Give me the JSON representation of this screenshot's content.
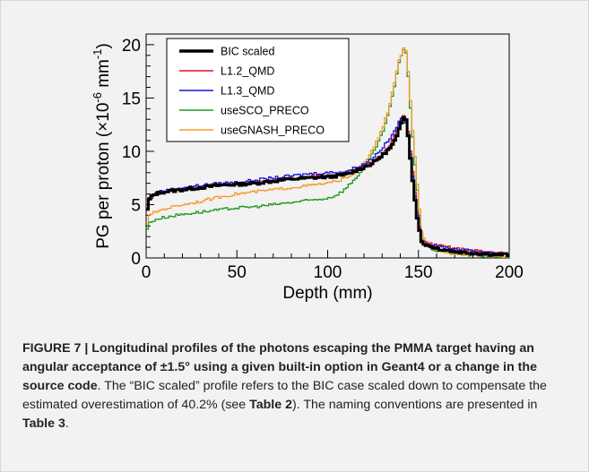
{
  "figure": {
    "label": "FIGURE 7 |",
    "title_bold": "Longitudinal profiles of the photons escaping the PMMA target having an angular acceptance of ±1.5° using a given built-in option in Geant4 or a change in the source code",
    "text_1": ". The “BIC scaled” profile refers to the BIC case scaled down to compensate the estimated overestimation of 40.2% (see ",
    "ref_1": "Table 2",
    "text_2": "). The naming conventions are presented in ",
    "ref_2": "Table 3",
    "text_3": "."
  },
  "chart_data": {
    "type": "line",
    "xlabel": "Depth (mm)",
    "ylabel_main": "PG per proton (×10",
    "ylabel_exp1": "-6",
    "ylabel_unit": " mm",
    "ylabel_exp2": "-1",
    "ylabel_close": ")",
    "xlim": [
      0,
      200
    ],
    "ylim": [
      0,
      21
    ],
    "xticks": [
      0,
      50,
      100,
      150,
      200
    ],
    "yticks": [
      0,
      5,
      10,
      15,
      20
    ],
    "xtick_labels": [
      "0",
      "50",
      "100",
      "150",
      "200"
    ],
    "ytick_labels": [
      "0",
      "5",
      "10",
      "15",
      "20"
    ],
    "legend_position": "top-left",
    "series": [
      {
        "name": "BIC scaled",
        "color": "#000000",
        "width": 3,
        "x": [
          0,
          2,
          5,
          10,
          20,
          30,
          40,
          50,
          60,
          70,
          80,
          90,
          100,
          110,
          120,
          125,
          130,
          135,
          138,
          140,
          142,
          143,
          144,
          145,
          147,
          150,
          152,
          155,
          160,
          170,
          180,
          190,
          200
        ],
        "y": [
          4.0,
          5.6,
          6.0,
          6.2,
          6.4,
          6.6,
          6.8,
          6.9,
          7.0,
          7.2,
          7.4,
          7.5,
          7.6,
          7.8,
          8.5,
          8.9,
          9.6,
          10.4,
          11.3,
          12.3,
          13.3,
          13.2,
          12.2,
          10.5,
          7.0,
          3.0,
          1.4,
          1.2,
          0.9,
          0.6,
          0.45,
          0.35,
          0.3
        ]
      },
      {
        "name": "L1.2_QMD",
        "color": "#e8101a",
        "width": 1.3,
        "x": [
          0,
          2,
          5,
          10,
          20,
          30,
          40,
          50,
          60,
          70,
          80,
          90,
          100,
          110,
          120,
          125,
          130,
          135,
          138,
          140,
          142,
          143,
          144,
          145,
          147,
          150,
          152,
          155,
          160,
          170,
          180,
          190,
          200
        ],
        "y": [
          4.0,
          5.5,
          6.0,
          6.2,
          6.5,
          6.7,
          6.9,
          7.0,
          7.1,
          7.3,
          7.5,
          7.6,
          7.7,
          7.9,
          8.6,
          9.0,
          9.7,
          10.8,
          11.8,
          12.8,
          13.3,
          13.1,
          12.4,
          11.0,
          7.8,
          3.5,
          1.6,
          1.4,
          1.2,
          0.9,
          0.7,
          0.55,
          0.4
        ]
      },
      {
        "name": "L1.3_QMD",
        "color": "#1414d6",
        "width": 1.3,
        "x": [
          0,
          2,
          5,
          10,
          20,
          30,
          40,
          50,
          60,
          70,
          80,
          90,
          100,
          110,
          120,
          125,
          130,
          135,
          138,
          140,
          142,
          143,
          144,
          145,
          147,
          150,
          152,
          155,
          160,
          170,
          180,
          190,
          200
        ],
        "y": [
          4.2,
          5.7,
          6.1,
          6.3,
          6.6,
          6.8,
          7.0,
          7.1,
          7.3,
          7.5,
          7.7,
          7.9,
          8.0,
          8.1,
          8.8,
          9.4,
          10.3,
          11.3,
          12.3,
          12.9,
          13.2,
          12.9,
          12.0,
          10.6,
          7.5,
          3.3,
          1.5,
          1.3,
          1.1,
          0.85,
          0.65,
          0.5,
          0.4
        ]
      },
      {
        "name": "useSCO_PRECO",
        "color": "#1e9a1e",
        "width": 1.3,
        "x": [
          0,
          2,
          5,
          10,
          20,
          30,
          40,
          50,
          60,
          70,
          80,
          90,
          100,
          105,
          110,
          115,
          120,
          125,
          130,
          134,
          137,
          139,
          141,
          142,
          143,
          144,
          145,
          147,
          150,
          152,
          155,
          160,
          170,
          180,
          190,
          200
        ],
        "y": [
          2.5,
          3.3,
          3.6,
          3.8,
          4.1,
          4.3,
          4.5,
          4.7,
          4.8,
          5.0,
          5.2,
          5.4,
          5.6,
          5.9,
          6.5,
          7.4,
          8.4,
          9.8,
          11.6,
          13.8,
          16.2,
          18.0,
          19.2,
          19.7,
          19.4,
          18.0,
          15.5,
          11.0,
          5.0,
          2.0,
          1.0,
          0.7,
          0.4,
          0.25,
          0.15,
          0.1
        ]
      },
      {
        "name": "useGNASH_PRECO",
        "color": "#f59a2a",
        "width": 1.3,
        "x": [
          0,
          2,
          5,
          10,
          20,
          30,
          40,
          50,
          60,
          70,
          80,
          90,
          100,
          105,
          110,
          115,
          120,
          125,
          130,
          134,
          137,
          139,
          141,
          142,
          143,
          144,
          145,
          147,
          150,
          152,
          155,
          160,
          170,
          180,
          190,
          200
        ],
        "y": [
          3.1,
          4.0,
          4.3,
          4.6,
          5.0,
          5.3,
          5.7,
          6.0,
          6.2,
          6.4,
          6.6,
          6.8,
          7.0,
          7.2,
          7.5,
          8.0,
          8.8,
          10.2,
          12.0,
          14.2,
          16.6,
          18.3,
          19.3,
          19.7,
          19.5,
          18.3,
          16.0,
          11.8,
          5.5,
          2.2,
          1.1,
          0.75,
          0.45,
          0.3,
          0.2,
          0.15
        ]
      }
    ]
  }
}
